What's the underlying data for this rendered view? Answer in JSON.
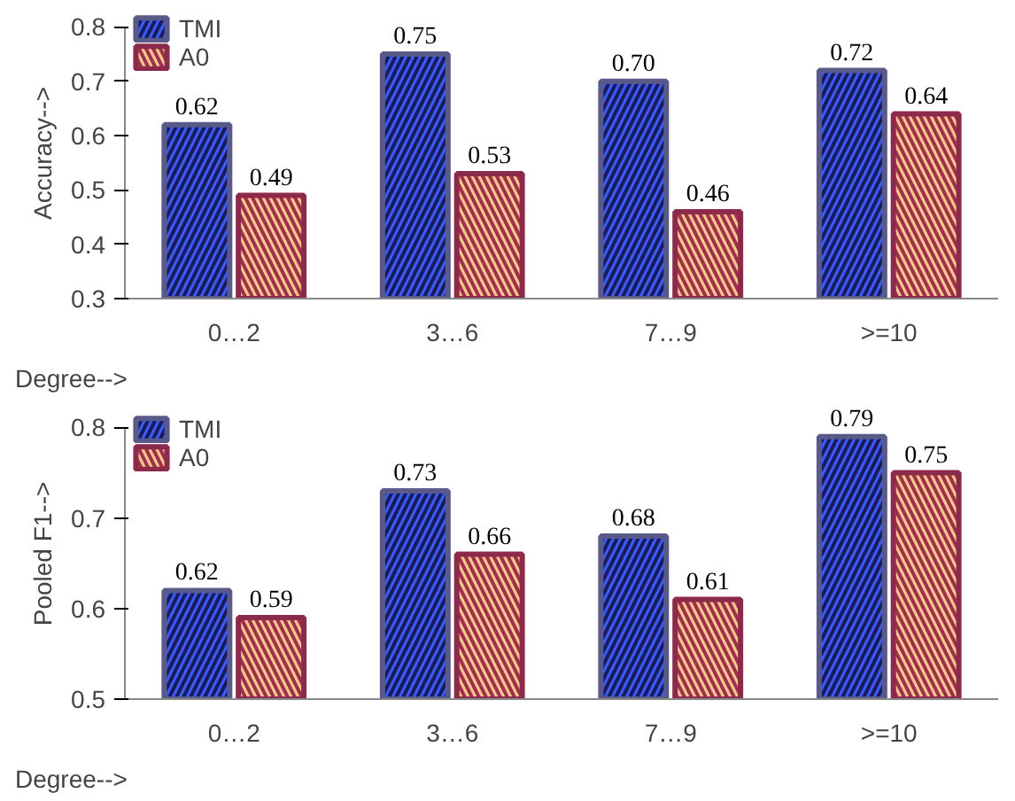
{
  "chart_data": [
    {
      "type": "bar",
      "ylabel": "Accuracy-->",
      "xlabel": "Degree-->",
      "categories": [
        "0…2",
        "3…6",
        "7…9",
        ">=10"
      ],
      "ylim": [
        0.3,
        0.8
      ],
      "yticks": [
        0.3,
        0.4,
        0.5,
        0.6,
        0.7,
        0.8
      ],
      "legend": "top left",
      "grid": false,
      "series": [
        {
          "name": "TMI",
          "color": "#3a5cf0",
          "values": [
            0.62,
            0.75,
            0.7,
            0.72
          ],
          "value_labels": [
            "0.62",
            "0.75",
            "0.70",
            "0.72"
          ]
        },
        {
          "name": "A0",
          "color": "#f6c890",
          "values": [
            0.49,
            0.53,
            0.46,
            0.64
          ],
          "value_labels": [
            "0.49",
            "0.53",
            "0.46",
            "0.64"
          ]
        }
      ]
    },
    {
      "type": "bar",
      "ylabel": "Pooled F1-->",
      "xlabel": "Degree-->",
      "categories": [
        "0…2",
        "3…6",
        "7…9",
        ">=10"
      ],
      "ylim": [
        0.5,
        0.8
      ],
      "yticks": [
        0.5,
        0.6,
        0.7,
        0.8
      ],
      "legend": "top left",
      "grid": false,
      "series": [
        {
          "name": "TMI",
          "color": "#3a5cf0",
          "values": [
            0.62,
            0.73,
            0.68,
            0.79
          ],
          "value_labels": [
            "0.62",
            "0.73",
            "0.68",
            "0.79"
          ]
        },
        {
          "name": "A0",
          "color": "#f6c890",
          "values": [
            0.59,
            0.66,
            0.61,
            0.75
          ],
          "value_labels": [
            "0.59",
            "0.66",
            "0.61",
            "0.75"
          ]
        }
      ]
    }
  ]
}
